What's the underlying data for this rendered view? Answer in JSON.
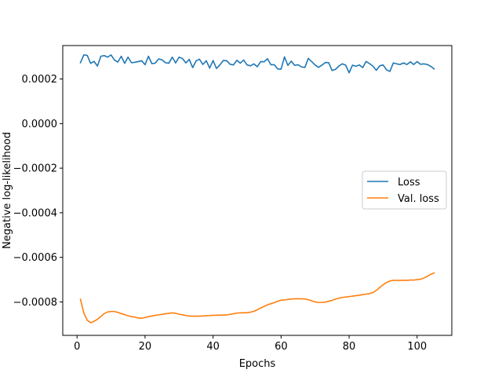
{
  "chart_data": {
    "type": "line",
    "title": "",
    "xlabel": "Epochs",
    "ylabel": "Negative log-likelihood",
    "xlim": [
      -4.2,
      110.2
    ],
    "ylim": [
      -0.00095,
      0.00035
    ],
    "xticks": [
      0,
      20,
      40,
      60,
      80,
      100
    ],
    "xtick_labels": [
      "0",
      "20",
      "40",
      "60",
      "80",
      "100"
    ],
    "yticks": [
      -0.0008,
      -0.0006,
      -0.0004,
      -0.0002,
      0.0,
      0.0002
    ],
    "ytick_labels": [
      "−0.0008",
      "−0.0006",
      "−0.0004",
      "−0.0002",
      "0.0000",
      "0.0002"
    ],
    "grid": false,
    "legend": {
      "position": "center-right"
    },
    "x": [
      1,
      2,
      3,
      4,
      5,
      6,
      7,
      8,
      9,
      10,
      11,
      12,
      13,
      14,
      15,
      16,
      17,
      18,
      19,
      20,
      21,
      22,
      23,
      24,
      25,
      26,
      27,
      28,
      29,
      30,
      31,
      32,
      33,
      34,
      35,
      36,
      37,
      38,
      39,
      40,
      41,
      42,
      43,
      44,
      45,
      46,
      47,
      48,
      49,
      50,
      51,
      52,
      53,
      54,
      55,
      56,
      57,
      58,
      59,
      60,
      61,
      62,
      63,
      64,
      65,
      66,
      67,
      68,
      69,
      70,
      71,
      72,
      73,
      74,
      75,
      76,
      77,
      78,
      79,
      80,
      81,
      82,
      83,
      84,
      85,
      86,
      87,
      88,
      89,
      90,
      91,
      92,
      93,
      94,
      95,
      96,
      97,
      98,
      99,
      100,
      101,
      102,
      103,
      104,
      105
    ],
    "series": [
      {
        "name": "Loss",
        "color": "#1f77b4",
        "values": [
          0.000273,
          0.000308,
          0.000306,
          0.00027,
          0.000279,
          0.000258,
          0.000302,
          0.000305,
          0.000298,
          0.000308,
          0.000285,
          0.000276,
          0.000302,
          0.00027,
          0.000298,
          0.000273,
          0.000275,
          0.000278,
          0.000282,
          0.000264,
          0.000302,
          0.000269,
          0.000271,
          0.00029,
          0.000286,
          0.000273,
          0.000271,
          0.000298,
          0.000272,
          0.000298,
          0.000292,
          0.000272,
          0.000288,
          0.000251,
          0.000281,
          0.000289,
          0.000265,
          0.000282,
          0.000249,
          0.000283,
          0.000247,
          0.000263,
          0.000283,
          0.000282,
          0.000266,
          0.000263,
          0.000284,
          0.000271,
          0.000285,
          0.000263,
          0.000259,
          0.000268,
          0.000255,
          0.000278,
          0.000277,
          0.000291,
          0.000264,
          0.000264,
          0.000245,
          0.000244,
          0.000299,
          0.000261,
          0.00028,
          0.000261,
          0.000264,
          0.000254,
          0.000252,
          0.000292,
          0.000278,
          0.000263,
          0.000252,
          0.000262,
          0.000274,
          0.000273,
          0.000238,
          0.000243,
          0.000258,
          0.000268,
          0.000262,
          0.000228,
          0.000262,
          0.000257,
          0.000263,
          0.000251,
          0.000279,
          0.000269,
          0.000258,
          0.000239,
          0.000259,
          0.000263,
          0.000241,
          0.000234,
          0.000272,
          0.000268,
          0.000265,
          0.000272,
          0.000265,
          0.000277,
          0.000265,
          0.000278,
          0.000266,
          0.000268,
          0.000265,
          0.000257,
          0.000245
        ]
      },
      {
        "name": "Val. loss",
        "color": "#ff7f0e",
        "values": [
          -0.000788,
          -0.00085,
          -0.000882,
          -0.000893,
          -0.000887,
          -0.000878,
          -0.000865,
          -0.000852,
          -0.000845,
          -0.000843,
          -0.000843,
          -0.000847,
          -0.000852,
          -0.000857,
          -0.000862,
          -0.000866,
          -0.000868,
          -0.000872,
          -0.000873,
          -0.00087,
          -0.000866,
          -0.000863,
          -0.00086,
          -0.000858,
          -0.000856,
          -0.000853,
          -0.000851,
          -0.000849,
          -0.000851,
          -0.000855,
          -0.000858,
          -0.000861,
          -0.000863,
          -0.000864,
          -0.000864,
          -0.000864,
          -0.000863,
          -0.000862,
          -0.000861,
          -0.00086,
          -0.00086,
          -0.000859,
          -0.000859,
          -0.000858,
          -0.000856,
          -0.000853,
          -0.00085,
          -0.000849,
          -0.000849,
          -0.000848,
          -0.000846,
          -0.000842,
          -0.000835,
          -0.000827,
          -0.00082,
          -0.000813,
          -0.000808,
          -0.000803,
          -0.000797,
          -0.000792,
          -0.000791,
          -0.000789,
          -0.000787,
          -0.000786,
          -0.000786,
          -0.000786,
          -0.000787,
          -0.00079,
          -0.000795,
          -0.0008,
          -0.000802,
          -0.000802,
          -0.000801,
          -0.000797,
          -0.000793,
          -0.000787,
          -0.000783,
          -0.00078,
          -0.000778,
          -0.000776,
          -0.000774,
          -0.000772,
          -0.00077,
          -0.000767,
          -0.000765,
          -0.000763,
          -0.000758,
          -0.000748,
          -0.000735,
          -0.000723,
          -0.000713,
          -0.000706,
          -0.000703,
          -0.000703,
          -0.000703,
          -0.000703,
          -0.000703,
          -0.000702,
          -0.000702,
          -0.0007,
          -0.000698,
          -0.000693,
          -0.000685,
          -0.000676,
          -0.00067
        ]
      }
    ]
  }
}
